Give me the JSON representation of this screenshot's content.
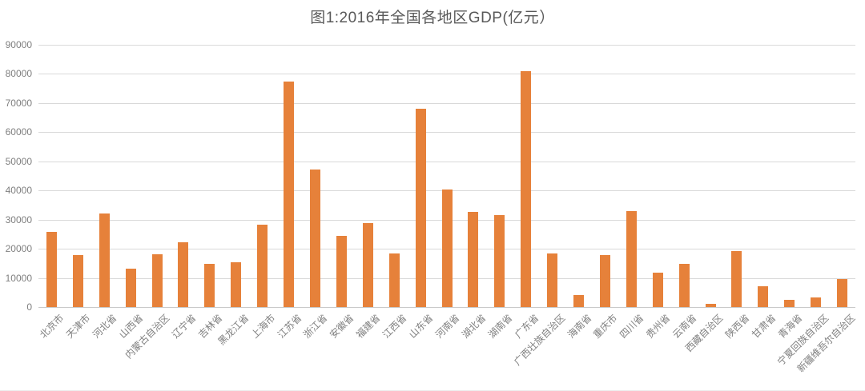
{
  "chart_data": {
    "type": "bar",
    "title": "图1:2016年全国各地区GDP(亿元）",
    "categories": [
      "北京市",
      "天津市",
      "河北省",
      "山西省",
      "内蒙古自治区",
      "辽宁省",
      "吉林省",
      "黑龙江省",
      "上海市",
      "江苏省",
      "浙江省",
      "安徽省",
      "福建省",
      "江西省",
      "山东省",
      "河南省",
      "湖北省",
      "湖南省",
      "广东省",
      "广西壮族自治区",
      "海南省",
      "重庆市",
      "四川省",
      "贵州省",
      "云南省",
      "西藏自治区",
      "陕西省",
      "甘肃省",
      "青海省",
      "宁夏回族自治区",
      "新疆维吾尔自治区"
    ],
    "values": [
      25669,
      17885,
      32070,
      13050,
      18128,
      22246,
      14776,
      15386,
      28178,
      77388,
      47251,
      24407,
      28810,
      18499,
      68024,
      40472,
      32665,
      31551,
      80855,
      18317,
      4053,
      17741,
      32934,
      11777,
      14870,
      1151,
      19246,
      7200,
      2572,
      3169,
      9650
    ],
    "xlabel": "",
    "ylabel": "",
    "ylim": [
      0,
      90000
    ],
    "ytick_step": 10000,
    "yticks": [
      0,
      10000,
      20000,
      30000,
      40000,
      50000,
      60000,
      70000,
      80000,
      90000
    ],
    "grid": true,
    "legend": "none",
    "colors": {
      "bar": "#E6813A",
      "gridline": "#D9D9D9",
      "baseline": "#C9C9C9",
      "axis_label": "#7F7F7F",
      "title": "#595959"
    }
  }
}
